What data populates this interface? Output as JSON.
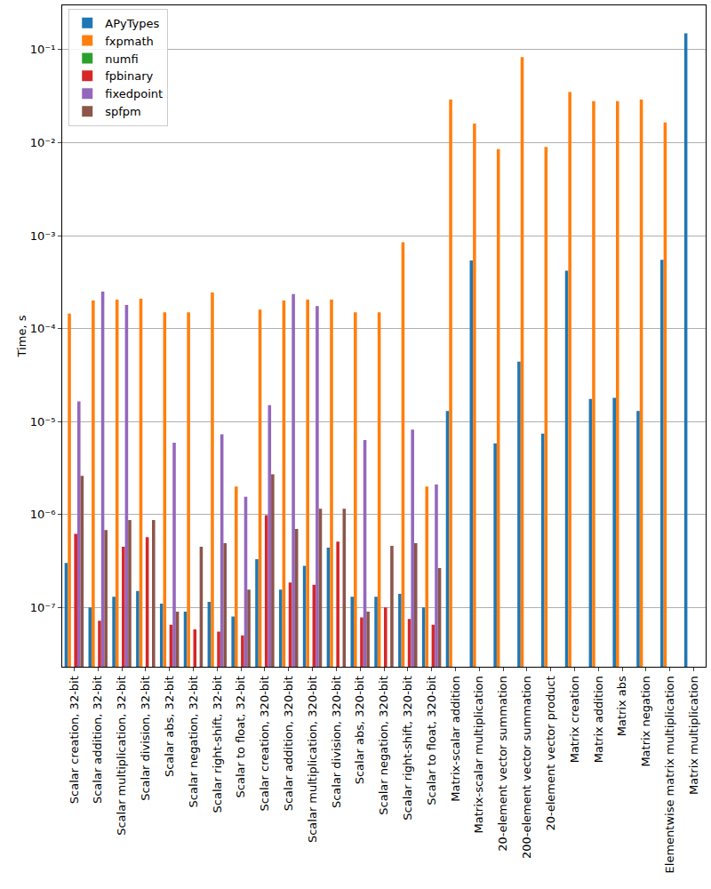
{
  "chart_data": {
    "type": "bar",
    "y_label": "Time, s",
    "log": "y",
    "grid": true,
    "legend": "upper left",
    "categories": [
      "Scalar creation, 32-bit",
      "Scalar addition, 32-bit",
      "Scalar multiplication, 32-bit",
      "Scalar division, 32-bit",
      "Scalar abs, 32-bit",
      "Scalar negation, 32-bit",
      "Scalar right-shift, 32-bit",
      "Scalar to float, 32-bit",
      "Scalar creation, 320-bit",
      "Scalar addition, 320-bit",
      "Scalar multiplication, 320-bit",
      "Scalar division, 320-bit",
      "Scalar abs, 320-bit",
      "Scalar negation, 320-bit",
      "Scalar right-shift, 320-bit",
      "Scalar to float, 320-bit",
      "Matrix-scalar addition",
      "Matrix-scalar multiplication",
      "20-element vector summation",
      "200-element vector summation",
      "20-element vector product",
      "Matrix creation",
      "Matrix addition",
      "Matrix abs",
      "Matrix negation",
      "Elementwise matrix multiplication",
      "Matrix multiplication"
    ],
    "series": [
      {
        "name": "APyTypes",
        "color": "#1f77b4",
        "values": [
          3e-07,
          1e-07,
          1.3e-07,
          1.5e-07,
          1.1e-07,
          9e-08,
          1.15e-07,
          8e-08,
          3.3e-07,
          1.55e-07,
          2.8e-07,
          4.4e-07,
          1.3e-07,
          1.3e-07,
          1.4e-07,
          1e-07,
          1.3e-05,
          0.00054,
          5.8e-06,
          4.4e-05,
          7.4e-06,
          0.00042,
          1.75e-05,
          1.8e-05,
          1.3e-05,
          0.00055,
          0.15
        ]
      },
      {
        "name": "fxpmath",
        "color": "#ff7f0e",
        "values": [
          0.000145,
          0.0002,
          0.000205,
          0.00021,
          0.00015,
          0.00015,
          0.000245,
          2e-06,
          0.00016,
          0.0002,
          0.000205,
          0.000205,
          0.00015,
          0.00015,
          0.00085,
          2e-06,
          0.029,
          0.016,
          0.0085,
          0.083,
          0.009,
          0.035,
          0.028,
          0.028,
          0.029,
          0.0165,
          null
        ]
      },
      {
        "name": "numfi",
        "color": "#2ca02c",
        "values": [
          null,
          null,
          null,
          null,
          null,
          null,
          null,
          null,
          null,
          null,
          null,
          null,
          null,
          null,
          null,
          null,
          null,
          null,
          null,
          null,
          null,
          null,
          null,
          null,
          null,
          null,
          null
        ]
      },
      {
        "name": "fpbinary",
        "color": "#d62728",
        "values": [
          6.2e-07,
          7.2e-08,
          4.5e-07,
          5.7e-07,
          6.5e-08,
          5.8e-08,
          5.5e-08,
          5e-08,
          9.8e-07,
          1.85e-07,
          1.75e-07,
          5.1e-07,
          7.8e-08,
          1e-07,
          7.5e-08,
          6.5e-08,
          null,
          null,
          null,
          null,
          null,
          null,
          null,
          null,
          null,
          null,
          null
        ]
      },
      {
        "name": "fixedpoint",
        "color": "#9467bd",
        "values": [
          1.65e-05,
          0.00025,
          0.00018,
          null,
          5.9e-06,
          null,
          7.3e-06,
          1.55e-06,
          1.5e-05,
          0.000235,
          0.000175,
          null,
          6.3e-06,
          null,
          8.2e-06,
          2.1e-06,
          null,
          null,
          null,
          null,
          null,
          null,
          null,
          null,
          null,
          null,
          null
        ]
      },
      {
        "name": "spfpm",
        "color": "#8c564b",
        "values": [
          2.6e-06,
          6.8e-07,
          8.7e-07,
          8.7e-07,
          9e-08,
          4.5e-07,
          4.9e-07,
          1.55e-07,
          2.7e-06,
          7e-07,
          1.15e-06,
          1.15e-06,
          9e-08,
          4.6e-07,
          4.9e-07,
          2.65e-07,
          null,
          null,
          null,
          null,
          null,
          null,
          null,
          null,
          null,
          null,
          null
        ]
      }
    ],
    "ylim": [
      2.3e-08,
      0.3
    ],
    "yticks": [
      {
        "value": 1e-07,
        "label": "10⁻⁷"
      },
      {
        "value": 1e-06,
        "label": "10⁻⁶"
      },
      {
        "value": 1e-05,
        "label": "10⁻⁵"
      },
      {
        "value": 0.0001,
        "label": "10⁻⁴"
      },
      {
        "value": 0.001,
        "label": "10⁻³"
      },
      {
        "value": 0.01,
        "label": "10⁻²"
      },
      {
        "value": 0.1,
        "label": "10⁻¹"
      }
    ]
  }
}
